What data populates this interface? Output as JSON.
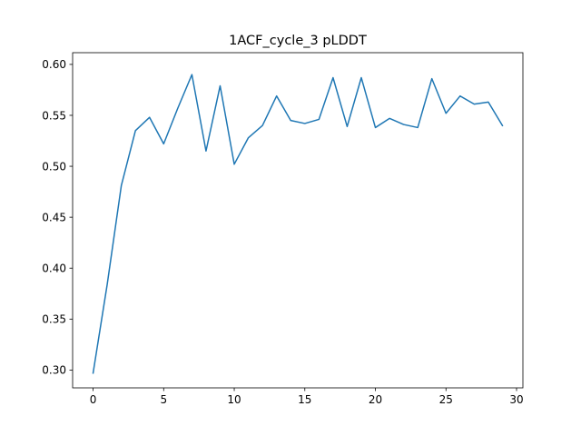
{
  "chart_data": {
    "type": "line",
    "title": "1ACF_cycle_3 pLDDT",
    "xlabel": "",
    "ylabel": "",
    "xlim": [
      -1.45,
      30.45
    ],
    "ylim": [
      0.2825,
      0.6115
    ],
    "x_ticks": [
      0,
      5,
      10,
      15,
      20,
      25,
      30
    ],
    "y_ticks": [
      0.3,
      0.35,
      0.4,
      0.45,
      0.5,
      0.55,
      0.6
    ],
    "x_tick_labels": [
      "0",
      "5",
      "10",
      "15",
      "20",
      "25",
      "30"
    ],
    "y_tick_labels": [
      "0.30",
      "0.35",
      "0.40",
      "0.45",
      "0.50",
      "0.55",
      "0.60"
    ],
    "grid": false,
    "series": [
      {
        "color": "#1f77b4",
        "x": [
          0,
          1,
          2,
          3,
          4,
          5,
          6,
          7,
          8,
          9,
          10,
          11,
          12,
          13,
          14,
          15,
          16,
          17,
          18,
          19,
          20,
          21,
          22,
          23,
          24,
          25,
          26,
          27,
          28,
          29
        ],
        "y": [
          0.297,
          0.384,
          0.481,
          0.535,
          0.548,
          0.522,
          0.557,
          0.59,
          0.515,
          0.579,
          0.502,
          0.528,
          0.54,
          0.569,
          0.545,
          0.542,
          0.546,
          0.587,
          0.539,
          0.587,
          0.538,
          0.547,
          0.541,
          0.538,
          0.586,
          0.552,
          0.569,
          0.561,
          0.563,
          0.54
        ]
      }
    ]
  }
}
